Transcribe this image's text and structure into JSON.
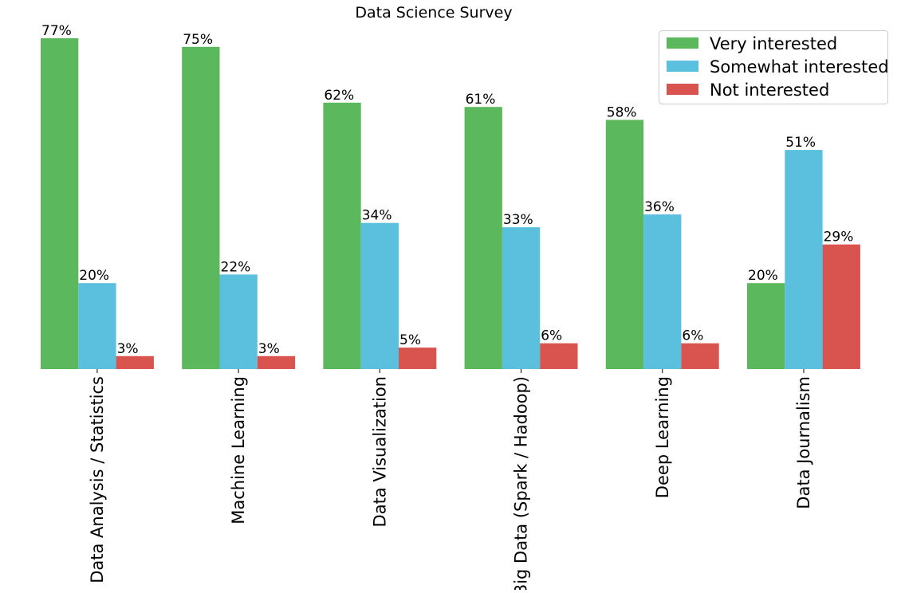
{
  "chart_data": {
    "type": "bar",
    "title": "Data Science Survey",
    "xlabel": "",
    "ylabel": "",
    "ylim": [
      0,
      80
    ],
    "grid": false,
    "legend_position": "top-right",
    "categories": [
      "Data Analysis / Statistics",
      "Machine Learning",
      "Data Visualization",
      "Big Data (Spark / Hadoop)",
      "Deep Learning",
      "Data Journalism"
    ],
    "series": [
      {
        "name": "Very interested",
        "color": "#5cb85c",
        "values": [
          77,
          75,
          62,
          61,
          58,
          20
        ]
      },
      {
        "name": "Somewhat interested",
        "color": "#5bc0de",
        "values": [
          20,
          22,
          34,
          33,
          36,
          51
        ]
      },
      {
        "name": "Not interested",
        "color": "#d9534f",
        "values": [
          3,
          3,
          5,
          6,
          6,
          29
        ]
      }
    ],
    "value_suffix": "%"
  }
}
